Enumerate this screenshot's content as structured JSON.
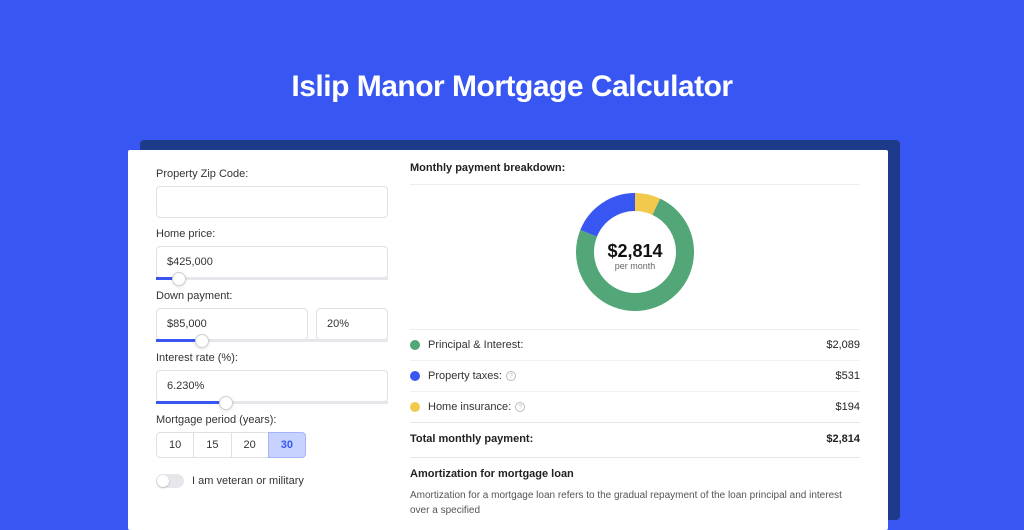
{
  "page": {
    "title": "Islip Manor Mortgage Calculator",
    "background_color": "#3857f2",
    "shadow_color": "#1e3a8a"
  },
  "form": {
    "zip": {
      "label": "Property Zip Code:",
      "value": ""
    },
    "home_price": {
      "label": "Home price:",
      "value": "$425,000",
      "slider_pct": 10
    },
    "down_payment": {
      "label": "Down payment:",
      "value": "$85,000",
      "pct_value": "20%",
      "slider_pct": 20
    },
    "interest_rate": {
      "label": "Interest rate (%):",
      "value": "6.230%",
      "slider_pct": 30
    },
    "period": {
      "label": "Mortgage period (years):",
      "options": [
        "10",
        "15",
        "20",
        "30"
      ],
      "selected": "30"
    },
    "veteran": {
      "label": "I am veteran or military",
      "checked": false
    }
  },
  "breakdown": {
    "title": "Monthly payment breakdown:",
    "donut": {
      "value": "$2,814",
      "sub": "per month",
      "slices": [
        {
          "label": "Principal & Interest:",
          "color": "#52a678",
          "value": "$2,089",
          "pct": 74,
          "help": false
        },
        {
          "label": "Property taxes:",
          "color": "#3857f2",
          "value": "$531",
          "pct": 19,
          "help": true
        },
        {
          "label": "Home insurance:",
          "color": "#f2c94c",
          "value": "$194",
          "pct": 7,
          "help": true
        }
      ],
      "stroke_width": 18,
      "radius": 50,
      "svg_size": 130
    },
    "total": {
      "label": "Total monthly payment:",
      "value": "$2,814"
    }
  },
  "amortization": {
    "title": "Amortization for mortgage loan",
    "text": "Amortization for a mortgage loan refers to the gradual repayment of the loan principal and interest over a specified"
  }
}
